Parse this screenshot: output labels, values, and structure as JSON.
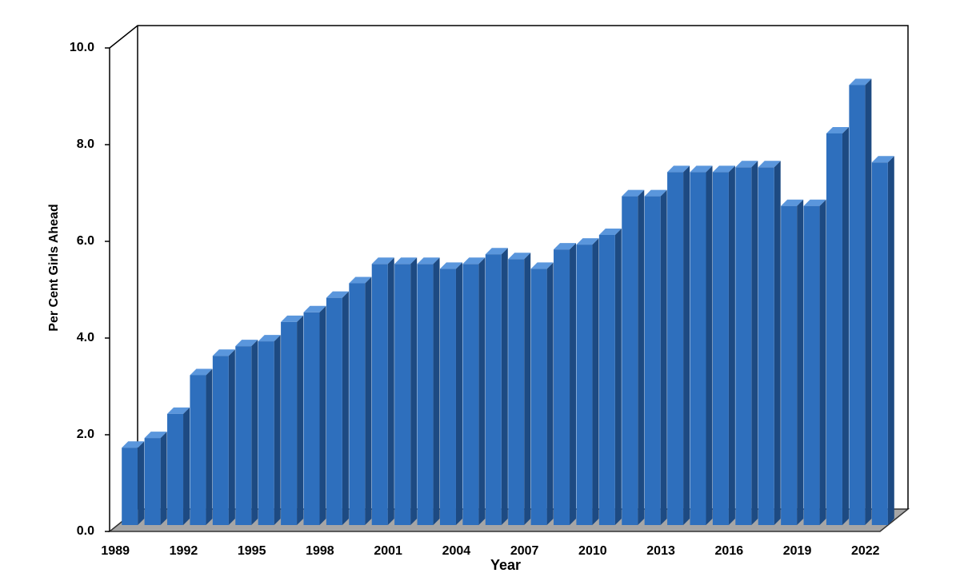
{
  "chart_data": {
    "type": "bar3d",
    "x_label": "Year",
    "y_label": "Per Cent Girls Ahead",
    "categories": [
      "1989",
      null,
      null,
      "1992",
      null,
      null,
      "1995",
      null,
      null,
      "1998",
      null,
      null,
      "2001",
      null,
      null,
      "2004",
      null,
      null,
      "2007",
      null,
      null,
      "2010",
      null,
      null,
      "2013",
      null,
      null,
      "2016",
      null,
      null,
      "2019",
      null,
      null,
      "2022"
    ],
    "values": [
      1.6,
      1.8,
      2.3,
      3.1,
      3.5,
      3.7,
      3.8,
      4.2,
      4.4,
      4.7,
      5.0,
      5.4,
      5.4,
      5.4,
      5.3,
      5.4,
      5.6,
      5.5,
      5.3,
      5.7,
      5.8,
      6.0,
      6.8,
      6.8,
      7.3,
      7.3,
      7.3,
      7.4,
      7.4,
      6.6,
      6.6,
      8.1,
      9.1,
      7.5
    ],
    "color": "#2e6fbd",
    "ylim": [
      0,
      10
    ],
    "yticks": [
      {
        "value": 0,
        "label": "0.0"
      },
      {
        "value": 2,
        "label": "2.0"
      },
      {
        "value": 4,
        "label": "4.0"
      },
      {
        "value": 6,
        "label": "6.0"
      },
      {
        "value": 8,
        "label": "8.0"
      },
      {
        "value": 10,
        "label": "10.0"
      }
    ],
    "grid": false
  }
}
